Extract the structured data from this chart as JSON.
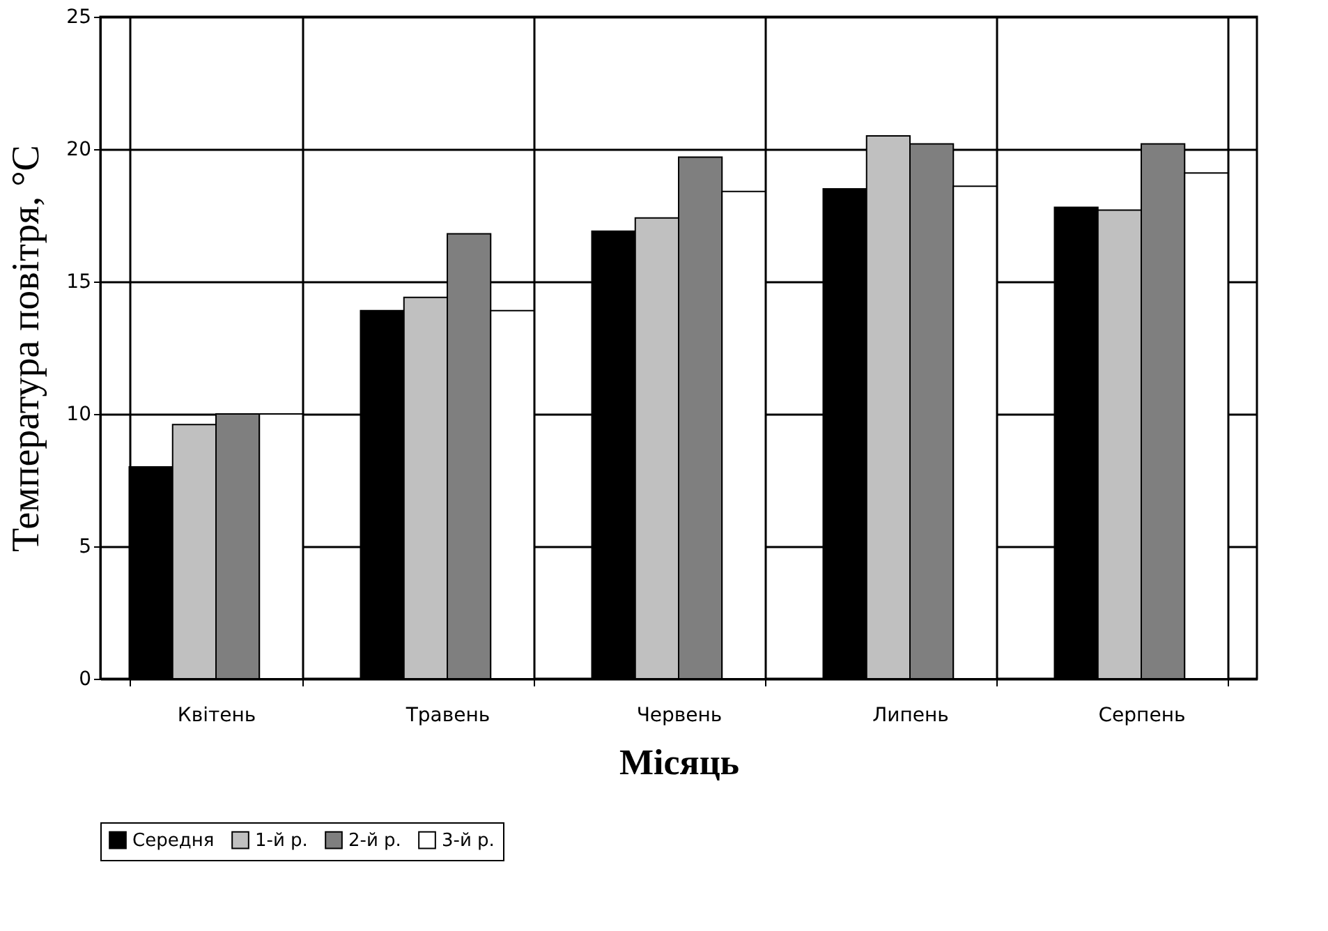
{
  "chart_data": {
    "type": "bar",
    "xlabel": "Місяць",
    "ylabel": "Температура повітря, °С",
    "categories": [
      "Квітень",
      "Травень",
      "Червень",
      "Липень",
      "Серпень"
    ],
    "series": [
      {
        "name": "Середня",
        "color": "#000000",
        "values": [
          8.0,
          13.9,
          16.9,
          18.5,
          17.8
        ]
      },
      {
        "name": "1-й р.",
        "color": "#c0c0c0",
        "values": [
          9.6,
          14.4,
          17.4,
          20.5,
          17.7
        ]
      },
      {
        "name": "2-й р.",
        "color": "#7f7f7f",
        "values": [
          10.0,
          16.8,
          19.7,
          20.2,
          20.2
        ]
      },
      {
        "name": "3-й р.",
        "color": "#ffffff",
        "values": [
          10.0,
          13.9,
          18.4,
          18.6,
          19.1
        ]
      }
    ],
    "ylim": [
      0,
      25
    ],
    "yticks": [
      0,
      5,
      10,
      15,
      20,
      25
    ],
    "grid": true,
    "legend": "bottom"
  }
}
